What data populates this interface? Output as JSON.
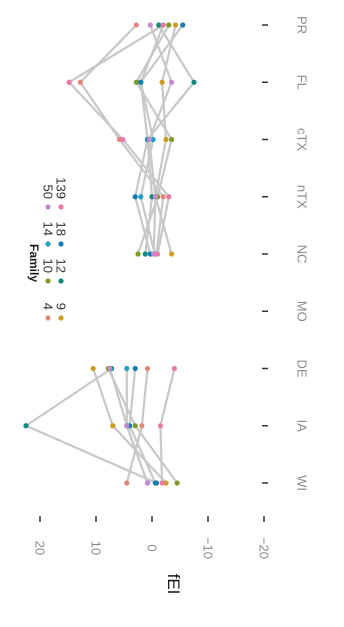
{
  "chart_data": {
    "type": "line",
    "orientation": "rotated-90-clockwise",
    "ylabel": "fEI",
    "ylim": [
      -25,
      25
    ],
    "y_ticks": [
      20,
      10,
      0,
      -10,
      -20
    ],
    "y_tick_labels": [
      "20",
      "10",
      "0",
      "−10",
      "−20"
    ],
    "categories": [
      "WI",
      "IA",
      "DE",
      "MO",
      "NC",
      "nTX",
      "cTX",
      "FL",
      "PR"
    ],
    "legend": {
      "title": "Family",
      "placement": "top-right",
      "items": [
        {
          "label": "4",
          "color": "#e38878"
        },
        {
          "label": "9",
          "color": "#cf9b23"
        },
        {
          "label": "10",
          "color": "#7e9a28"
        },
        {
          "label": "12",
          "color": "#12897c"
        },
        {
          "label": "14",
          "color": "#1fa1bf"
        },
        {
          "label": "18",
          "color": "#0f7eb2"
        },
        {
          "label": "50",
          "color": "#c48ad0"
        },
        {
          "label": "139",
          "color": "#e77aa4"
        }
      ]
    },
    "series": [
      {
        "color": "#e38878",
        "values": [
          4.5,
          1.8,
          0.8,
          null,
          -0.8,
          -2.0,
          5.8,
          12.8,
          2.8
        ]
      },
      {
        "color": "#cf9b23",
        "values": [
          -2.5,
          7.0,
          10.5,
          null,
          -3.5,
          -0.6,
          -2.5,
          -1.8,
          -4.2
        ]
      },
      {
        "color": "#7e9a28",
        "values": [
          -4.5,
          3.0,
          7.8,
          null,
          2.5,
          -1.0,
          -3.5,
          2.8,
          -3.0
        ]
      },
      {
        "color": "#12897c",
        "values": [
          -0.8,
          22.5,
          7.2,
          null,
          1.2,
          0.0,
          0.8,
          -7.5,
          -1.2
        ]
      },
      {
        "color": "#1fa1bf",
        "values": [
          0.8,
          4.5,
          4.5,
          null,
          -0.5,
          2.0,
          -0.2,
          2.0,
          -2.0
        ]
      },
      {
        "color": "#0f7eb2",
        "values": [
          -0.6,
          4.0,
          3.0,
          null,
          0.3,
          3.0,
          0.8,
          2.0,
          -5.5
        ]
      },
      {
        "color": "#c48ad0",
        "values": [
          0.8,
          4.5,
          7.5,
          null,
          -0.3,
          -0.6,
          0.5,
          -3.5,
          0.3
        ]
      },
      {
        "color": "#e77aa4",
        "values": [
          -1.8,
          -1.5,
          -4.0,
          null,
          -1.0,
          -3.0,
          5.2,
          14.8,
          -2.0
        ]
      }
    ]
  }
}
